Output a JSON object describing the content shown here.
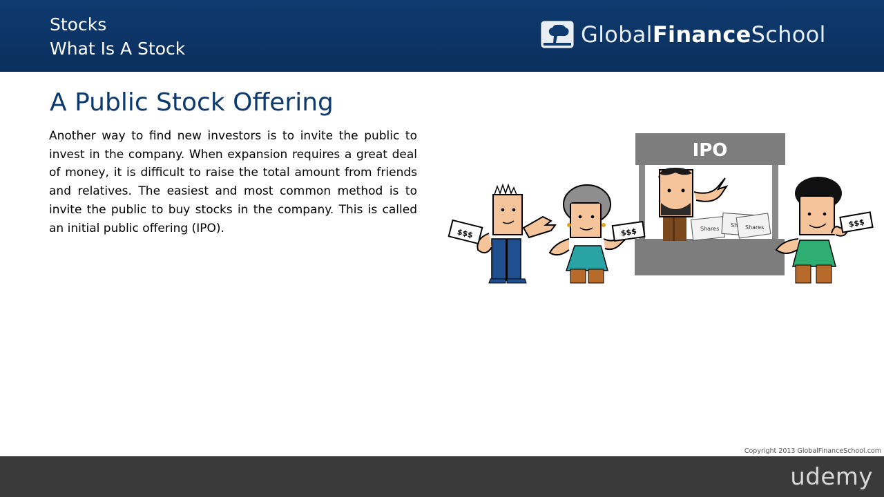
{
  "header": {
    "course": "Stocks",
    "lesson": "What Is A Stock",
    "brand_regular_1": "Global",
    "brand_bold": "Finance",
    "brand_regular_2": "School"
  },
  "slide": {
    "title": "A Public Stock Offering",
    "paragraph": "Another way to find new investors is to invite the public to invest in the company.  When expansion requires a great deal of money, it is difficult to raise the total amount from friends and relatives. The easiest and most common method is to invite the public to buy stocks in the company. This is called an initial public offering (IPO)."
  },
  "illustration": {
    "booth_sign": "IPO",
    "share_label": "Shares",
    "money_label": "$$$"
  },
  "copyright": "Copyright 2013 GlobalFinanceSchool.com",
  "footer": {
    "platform": "udemy"
  },
  "colors": {
    "header_bg": "#0f3a6f",
    "title": "#0d3a6e",
    "footer_bg": "#3a3a3a",
    "booth": "#7d7d7d",
    "skin": "#f6c49a",
    "teal": "#2aa3a5",
    "green": "#2fae74"
  }
}
